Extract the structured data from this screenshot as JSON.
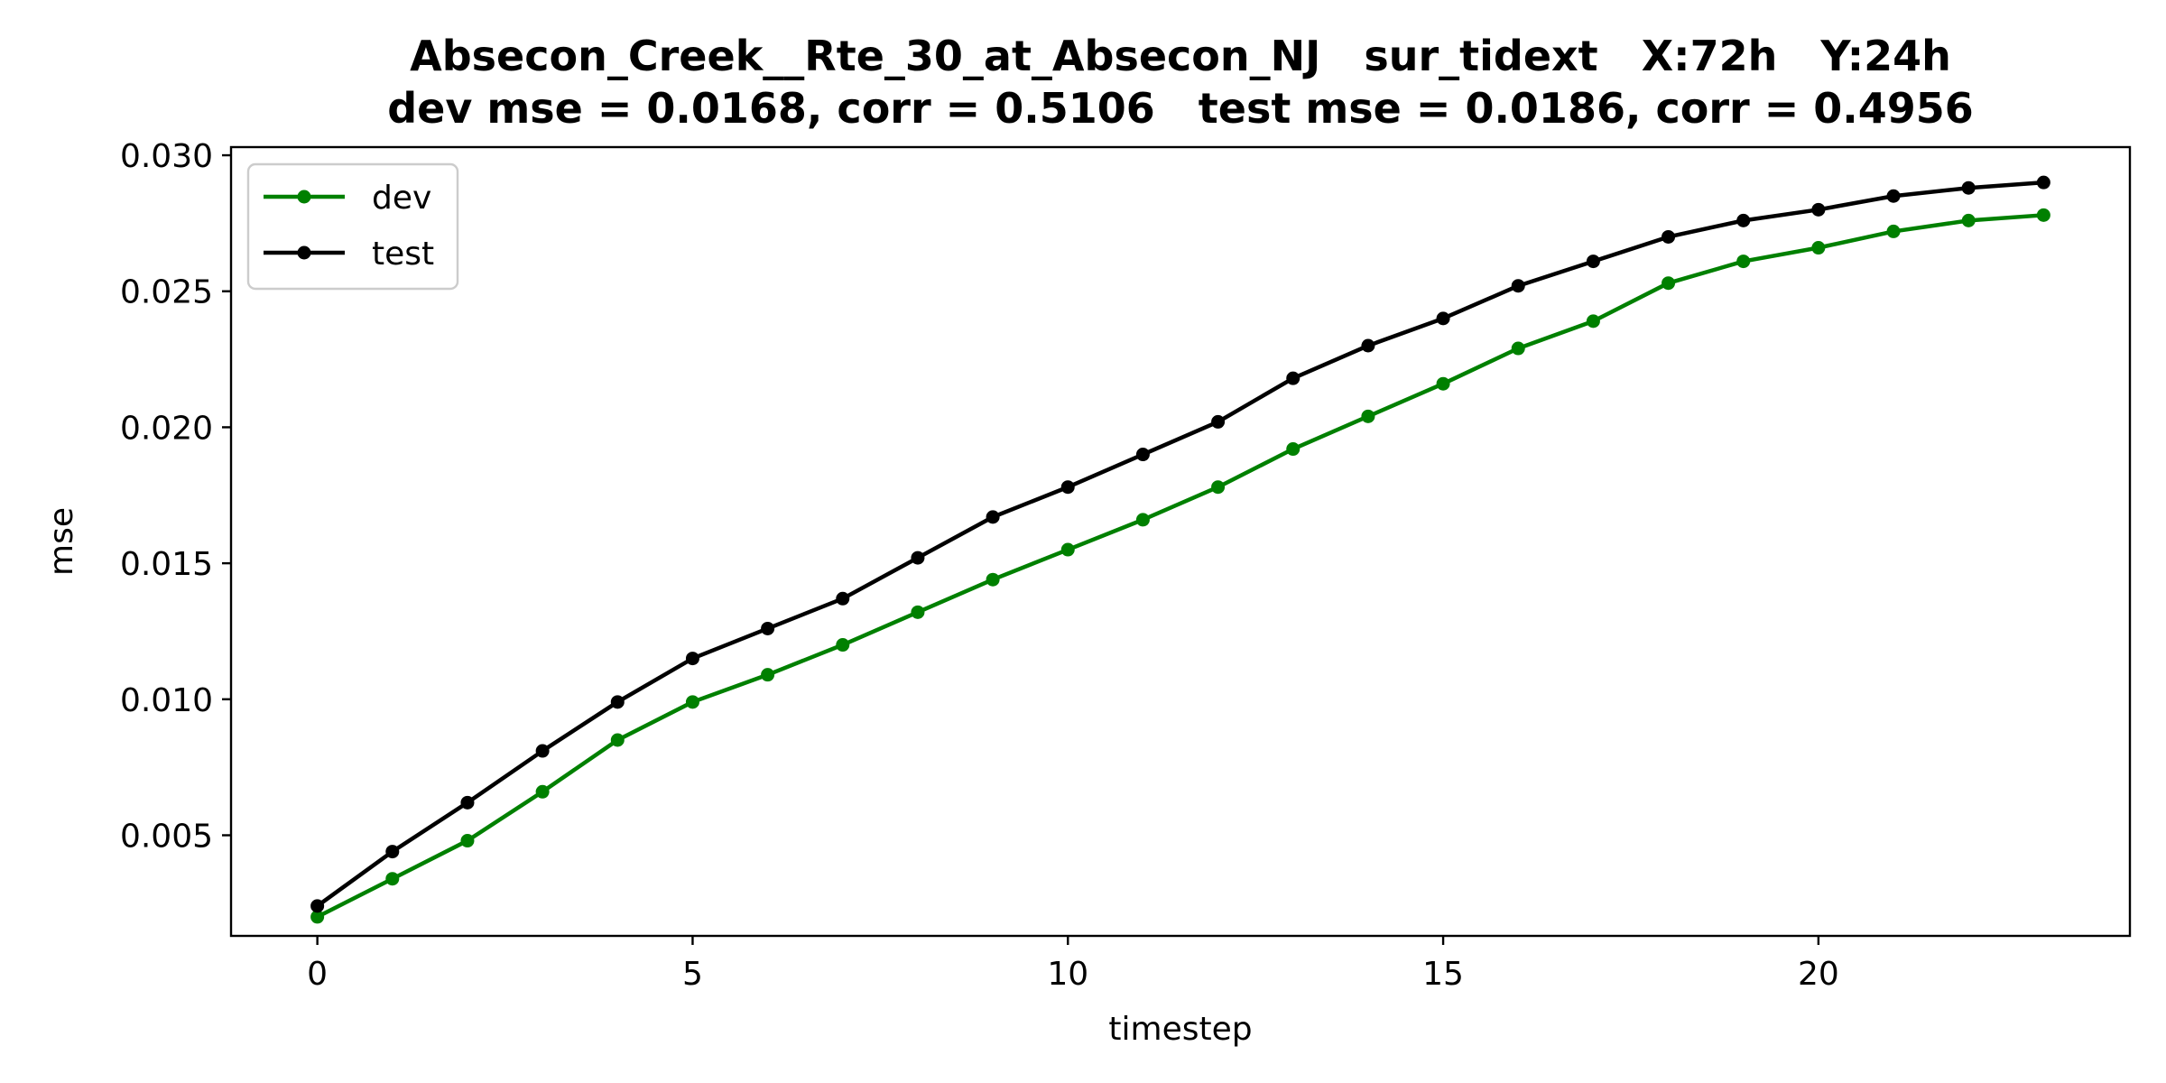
{
  "chart_data": {
    "type": "line",
    "title_line1": "Absecon_Creek__Rte_30_at_Absecon_NJ   sur_tidext   X:72h   Y:24h",
    "title_line2": "dev mse = 0.0168, corr = 0.5106   test mse = 0.0186, corr = 0.4956",
    "xlabel": "timestep",
    "ylabel": "mse",
    "xlim": [
      -1.15,
      24.15
    ],
    "ylim": [
      0.0013,
      0.0303
    ],
    "xticks": [
      0,
      5,
      10,
      15,
      20
    ],
    "xtick_labels": [
      "0",
      "5",
      "10",
      "15",
      "20"
    ],
    "yticks": [
      0.005,
      0.01,
      0.015,
      0.02,
      0.025,
      0.03
    ],
    "ytick_labels": [
      "0.005",
      "0.010",
      "0.015",
      "0.020",
      "0.025",
      "0.030"
    ],
    "grid": false,
    "legend_position": "upper-left",
    "x": [
      0,
      1,
      2,
      3,
      4,
      5,
      6,
      7,
      8,
      9,
      10,
      11,
      12,
      13,
      14,
      15,
      16,
      17,
      18,
      19,
      20,
      21,
      22,
      23
    ],
    "series": [
      {
        "name": "dev",
        "color": "#008000",
        "marker": "circle",
        "values": [
          0.002,
          0.0034,
          0.0048,
          0.0066,
          0.0085,
          0.0099,
          0.0109,
          0.012,
          0.0132,
          0.0144,
          0.0155,
          0.0166,
          0.0178,
          0.0192,
          0.0204,
          0.0216,
          0.0229,
          0.0239,
          0.0253,
          0.0261,
          0.0266,
          0.0272,
          0.0276,
          0.0278
        ]
      },
      {
        "name": "test",
        "color": "#000000",
        "marker": "circle",
        "values": [
          0.0024,
          0.0044,
          0.0062,
          0.0081,
          0.0099,
          0.0115,
          0.0126,
          0.0137,
          0.0152,
          0.0167,
          0.0178,
          0.019,
          0.0202,
          0.0218,
          0.023,
          0.024,
          0.0252,
          0.0261,
          0.027,
          0.0276,
          0.028,
          0.0285,
          0.0288,
          0.029
        ]
      }
    ]
  }
}
